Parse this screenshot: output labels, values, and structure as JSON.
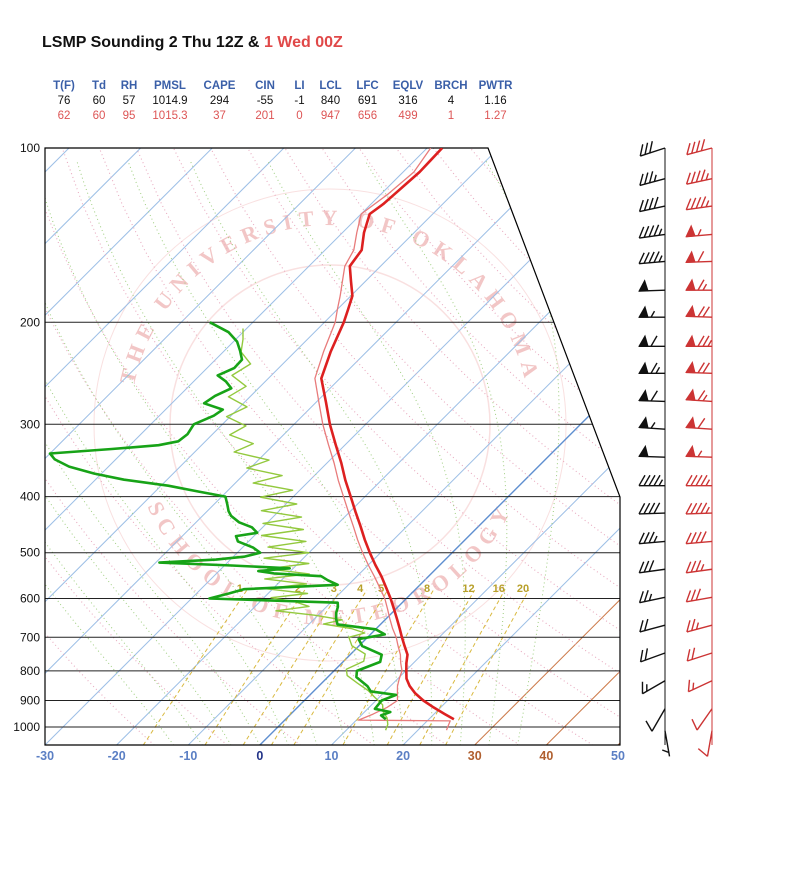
{
  "title": {
    "black": "LSMP Sounding 2 Thu 12Z & ",
    "red": "1 Wed 00Z"
  },
  "colors": {
    "title_red": "#e04848",
    "header_blue": "#3a5fa8",
    "value_black": "#111111",
    "value_red": "#dd5555",
    "temp_12z": "#dd2020",
    "temp_00z": "#e87b7b",
    "dewp_12z": "#17a317",
    "dewp_00z": "#93c93e",
    "barbs_12z": "#111111",
    "barbs_00z": "#cc3434",
    "isotherm": "#9dbfe6",
    "isotherm_zero": "#5f8fd0",
    "isotherm_warm": "#cc7a4a",
    "dry_adiabat": "#e8aabf",
    "moist_adiabat": "#9fce80",
    "mixing_line": "#d9b93f",
    "mixing_label": "#b8a02a",
    "watermark": "#f2c6c6",
    "axis_blue": "#5b7fc4",
    "axis_zero": "#223388",
    "axis_warm": "#b06030"
  },
  "indices": {
    "columns": [
      {
        "label": "T(F)",
        "v12": "76",
        "v00": "62"
      },
      {
        "label": "Td",
        "v12": "60",
        "v00": "60"
      },
      {
        "label": "RH",
        "v12": "57",
        "v00": "95"
      },
      {
        "label": "PMSL",
        "v12": "1014.9",
        "v00": "1015.3"
      },
      {
        "label": "CAPE",
        "v12": "294",
        "v00": "37"
      },
      {
        "label": "CIN",
        "v12": "-55",
        "v00": "201"
      },
      {
        "label": "LI",
        "v12": "-1",
        "v00": "0"
      },
      {
        "label": "LCL",
        "v12": "840",
        "v00": "947"
      },
      {
        "label": "LFC",
        "v12": "691",
        "v00": "656"
      },
      {
        "label": "EQLV",
        "v12": "316",
        "v00": "499"
      },
      {
        "label": "BRCH",
        "v12": "4",
        "v00": "1"
      },
      {
        "label": "PWTR",
        "v12": "1.16",
        "v00": "1.27"
      }
    ]
  },
  "chart_data": {
    "type": "skewt-log-p",
    "title": "LSMP Sounding 2 Thu 12Z & 1 Wed 00Z",
    "pressure_levels_hPa": [
      100,
      200,
      300,
      400,
      500,
      600,
      700,
      800,
      900,
      1000
    ],
    "temp_ticks_C": [
      -30,
      -20,
      -10,
      0,
      10,
      20,
      30,
      40,
      50
    ],
    "isotherms_C": {
      "min": -110,
      "max": 50,
      "step": 10
    },
    "dry_adiabats_C": [
      -20,
      -10,
      0,
      10,
      20,
      30,
      40,
      50,
      60,
      70,
      80,
      90,
      100,
      110,
      120,
      130,
      140,
      150
    ],
    "moist_adiabats_startC": [
      -12,
      -8,
      -4,
      0,
      4,
      8,
      12,
      16,
      20,
      24,
      28,
      32,
      36
    ],
    "mixing_ratio_gkg": [
      1,
      2,
      3,
      4,
      5,
      8,
      12,
      16,
      20
    ],
    "watermark": {
      "top": "THE UNIVERSITY OF OKLAHOMA",
      "bottom": "SCHOOL OF METEOROLOGY"
    },
    "profiles": {
      "temp_12z": [
        [
          970,
          23.5
        ],
        [
          950,
          21.5
        ],
        [
          925,
          19
        ],
        [
          900,
          16.6
        ],
        [
          875,
          14.5
        ],
        [
          850,
          12.7
        ],
        [
          825,
          11.2
        ],
        [
          800,
          10.1
        ],
        [
          775,
          9
        ],
        [
          750,
          8
        ],
        [
          725,
          6.4
        ],
        [
          700,
          4.8
        ],
        [
          675,
          3.2
        ],
        [
          650,
          1.5
        ],
        [
          625,
          -0.3
        ],
        [
          600,
          -2.2
        ],
        [
          575,
          -4.3
        ],
        [
          550,
          -6.5
        ],
        [
          525,
          -9
        ],
        [
          500,
          -11.5
        ],
        [
          475,
          -14
        ],
        [
          450,
          -16.5
        ],
        [
          425,
          -19.2
        ],
        [
          400,
          -22
        ],
        [
          375,
          -25
        ],
        [
          350,
          -28
        ],
        [
          325,
          -31.4
        ],
        [
          300,
          -35
        ],
        [
          275,
          -38.6
        ],
        [
          250,
          -42.6
        ],
        [
          225,
          -45
        ],
        [
          200,
          -47.3
        ],
        [
          190,
          -48.5
        ],
        [
          180,
          -49.8
        ],
        [
          170,
          -52
        ],
        [
          160,
          -54.3
        ],
        [
          150,
          -54.9
        ],
        [
          140,
          -57
        ],
        [
          130,
          -58.8
        ],
        [
          125,
          -58.3
        ],
        [
          120,
          -58.1
        ],
        [
          115,
          -57.9
        ],
        [
          110,
          -57.7
        ],
        [
          105,
          -57.8
        ],
        [
          100,
          -57.9
        ]
      ],
      "temp_00z": [
        [
          1013,
          24
        ],
        [
          995,
          23.6
        ],
        [
          976,
          23.2
        ],
        [
          973,
          10.3
        ],
        [
          950,
          11.5
        ],
        [
          925,
          12.5
        ],
        [
          900,
          13
        ],
        [
          875,
          12
        ],
        [
          850,
          11
        ],
        [
          825,
          10.2
        ],
        [
          800,
          9.5
        ],
        [
          775,
          8.2
        ],
        [
          750,
          7
        ],
        [
          725,
          5.5
        ],
        [
          700,
          4
        ],
        [
          675,
          2.2
        ],
        [
          650,
          0.5
        ],
        [
          625,
          -1.2
        ],
        [
          600,
          -3
        ],
        [
          575,
          -5.2
        ],
        [
          550,
          -7.5
        ],
        [
          525,
          -10
        ],
        [
          500,
          -12.5
        ],
        [
          475,
          -15
        ],
        [
          450,
          -17.5
        ],
        [
          425,
          -20.2
        ],
        [
          400,
          -23
        ],
        [
          375,
          -26
        ],
        [
          350,
          -29
        ],
        [
          325,
          -32.4
        ],
        [
          300,
          -36
        ],
        [
          275,
          -39.6
        ],
        [
          250,
          -43.5
        ],
        [
          225,
          -46
        ],
        [
          200,
          -48.5
        ],
        [
          190,
          -50
        ],
        [
          180,
          -51.5
        ],
        [
          170,
          -53.2
        ],
        [
          160,
          -55
        ],
        [
          150,
          -56
        ],
        [
          140,
          -58
        ],
        [
          130,
          -60
        ],
        [
          120,
          -59
        ],
        [
          110,
          -58.5
        ],
        [
          100,
          -59.5
        ]
      ],
      "dewp_12z": [
        [
          970,
          14
        ],
        [
          955,
          12.8
        ],
        [
          942,
          13.6
        ],
        [
          930,
          11
        ],
        [
          900,
          10.8
        ],
        [
          880,
          12
        ],
        [
          868,
          8
        ],
        [
          850,
          6.8
        ],
        [
          820,
          4
        ],
        [
          800,
          3.2
        ],
        [
          772,
          5.2
        ],
        [
          750,
          4.4
        ],
        [
          725,
          0.5
        ],
        [
          705,
          -1
        ],
        [
          692,
          2
        ],
        [
          678,
          0
        ],
        [
          665,
          -6
        ],
        [
          650,
          -7
        ],
        [
          635,
          -7.8
        ],
        [
          620,
          -8.4
        ],
        [
          610,
          -9
        ],
        [
          600,
          -27.5
        ],
        [
          588,
          -25.5
        ],
        [
          578,
          -24
        ],
        [
          568,
          -11.5
        ],
        [
          558,
          -13.5
        ],
        [
          549,
          -15
        ],
        [
          543,
          -22
        ],
        [
          538,
          -24.5
        ],
        [
          532,
          -20.5
        ],
        [
          526,
          -29
        ],
        [
          520,
          -39.5
        ],
        [
          514,
          -32
        ],
        [
          508,
          -28.5
        ],
        [
          500,
          -26.8
        ],
        [
          490,
          -28.5
        ],
        [
          478,
          -31.5
        ],
        [
          468,
          -32.5
        ],
        [
          462,
          -30
        ],
        [
          452,
          -31.5
        ],
        [
          443,
          -34
        ],
        [
          432,
          -36
        ],
        [
          424,
          -37
        ],
        [
          412,
          -38.2
        ],
        [
          400,
          -39.5
        ],
        [
          392,
          -44
        ],
        [
          383,
          -49
        ],
        [
          374,
          -56
        ],
        [
          365,
          -61
        ],
        [
          355,
          -65.5
        ],
        [
          345,
          -68.5
        ],
        [
          337,
          -70
        ],
        [
          331,
          -62
        ],
        [
          326,
          -56
        ],
        [
          321,
          -53.8
        ],
        [
          312,
          -53.5
        ],
        [
          300,
          -54
        ],
        [
          290,
          -52.4
        ],
        [
          283,
          -52
        ],
        [
          276,
          -55.5
        ],
        [
          268,
          -55
        ],
        [
          260,
          -53.8
        ],
        [
          253,
          -55.5
        ],
        [
          247,
          -57.5
        ],
        [
          240,
          -56.2
        ],
        [
          232,
          -56.3
        ],
        [
          224,
          -57.8
        ],
        [
          216,
          -59.5
        ],
        [
          208,
          -62
        ],
        [
          200,
          -66
        ]
      ],
      "dewp_00z": [
        [
          1013,
          15.5
        ],
        [
          990,
          15
        ],
        [
          965,
          14
        ],
        [
          940,
          12.5
        ],
        [
          915,
          11.5
        ],
        [
          890,
          9.5
        ],
        [
          865,
          7.5
        ],
        [
          840,
          5
        ],
        [
          815,
          2.5
        ],
        [
          795,
          1.5
        ],
        [
          770,
          2.8
        ],
        [
          748,
          2
        ],
        [
          724,
          -1
        ],
        [
          700,
          -2.6
        ],
        [
          688,
          -1
        ],
        [
          676,
          -3.5
        ],
        [
          664,
          -8
        ],
        [
          653,
          -6
        ],
        [
          641,
          -10.5
        ],
        [
          630,
          -16.5
        ],
        [
          619,
          -12.5
        ],
        [
          608,
          -15
        ],
        [
          598,
          -19
        ],
        [
          588,
          -14.5
        ],
        [
          577,
          -21
        ],
        [
          566,
          -16
        ],
        [
          555,
          -22.5
        ],
        [
          544,
          -17
        ],
        [
          533,
          -23.5
        ],
        [
          522,
          -18.5
        ],
        [
          511,
          -25.5
        ],
        [
          500,
          -20
        ],
        [
          489,
          -26.5
        ],
        [
          478,
          -22
        ],
        [
          467,
          -29
        ],
        [
          456,
          -24
        ],
        [
          445,
          -30.5
        ],
        [
          434,
          -26
        ],
        [
          423,
          -32.5
        ],
        [
          412,
          -28.5
        ],
        [
          401,
          -34.5
        ],
        [
          390,
          -31
        ],
        [
          379,
          -37.5
        ],
        [
          368,
          -34.5
        ],
        [
          357,
          -40.5
        ],
        [
          346,
          -38.5
        ],
        [
          335,
          -44.5
        ],
        [
          324,
          -43
        ],
        [
          313,
          -47.5
        ],
        [
          302,
          -46.5
        ],
        [
          291,
          -50.5
        ],
        [
          280,
          -49
        ],
        [
          269,
          -53
        ],
        [
          258,
          -52
        ],
        [
          247,
          -55.5
        ],
        [
          236,
          -54.5
        ],
        [
          225,
          -57.5
        ],
        [
          214,
          -59
        ],
        [
          205,
          -60.5
        ]
      ]
    },
    "winds": {
      "w12z": [
        [
          100,
          252,
          30
        ],
        [
          113,
          255,
          35
        ],
        [
          126,
          258,
          40
        ],
        [
          141,
          262,
          45
        ],
        [
          157,
          265,
          45
        ],
        [
          176,
          268,
          50
        ],
        [
          196,
          270,
          55
        ],
        [
          220,
          270,
          60
        ],
        [
          245,
          270,
          65
        ],
        [
          274,
          272,
          60
        ],
        [
          306,
          274,
          55
        ],
        [
          342,
          272,
          50
        ],
        [
          383,
          270,
          45
        ],
        [
          427,
          268,
          40
        ],
        [
          478,
          265,
          35
        ],
        [
          534,
          262,
          30
        ],
        [
          597,
          258,
          25
        ],
        [
          667,
          255,
          20
        ],
        [
          745,
          250,
          20
        ],
        [
          832,
          240,
          15
        ],
        [
          930,
          210,
          10
        ],
        [
          1015,
          170,
          5
        ]
      ],
      "w00z": [
        [
          100,
          255,
          40
        ],
        [
          113,
          258,
          45
        ],
        [
          126,
          262,
          45
        ],
        [
          141,
          265,
          55
        ],
        [
          157,
          268,
          60
        ],
        [
          176,
          270,
          65
        ],
        [
          196,
          272,
          70
        ],
        [
          220,
          270,
          75
        ],
        [
          245,
          272,
          70
        ],
        [
          274,
          274,
          65
        ],
        [
          306,
          274,
          60
        ],
        [
          342,
          272,
          55
        ],
        [
          383,
          270,
          45
        ],
        [
          427,
          268,
          45
        ],
        [
          478,
          265,
          40
        ],
        [
          534,
          262,
          35
        ],
        [
          597,
          260,
          30
        ],
        [
          667,
          255,
          25
        ],
        [
          745,
          252,
          20
        ],
        [
          832,
          245,
          15
        ],
        [
          930,
          215,
          10
        ],
        [
          1015,
          190,
          10
        ]
      ]
    }
  }
}
